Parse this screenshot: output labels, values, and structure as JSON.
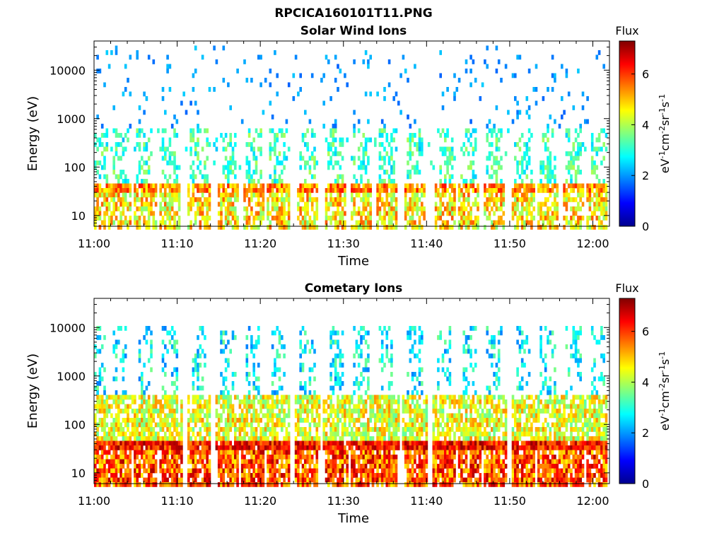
{
  "figure_title": "RPCICA160101T11.PNG",
  "chart_data": [
    {
      "type": "heatmap",
      "title": "Solar Wind Ions",
      "xlabel": "Time",
      "ylabel": "Energy (eV)",
      "x_ticks": [
        "11:00",
        "11:10",
        "11:20",
        "11:30",
        "11:40",
        "11:50",
        "12:00"
      ],
      "x_range": [
        "11:00",
        "12:02"
      ],
      "y_scale": "log",
      "y_ticks": [
        10,
        100,
        1000,
        10000
      ],
      "y_range": [
        6,
        40000
      ],
      "colorbar": {
        "label": "Flux",
        "units": "eV-1cm-2sr-1s-1",
        "range": [
          0,
          7.3
        ],
        "ticks": [
          0,
          2,
          4,
          6
        ],
        "colormap": "jet"
      },
      "burst_times_min": [
        0.5,
        3,
        6,
        9,
        12.5,
        16,
        19,
        22,
        25.5,
        29,
        32,
        35,
        38.5,
        42,
        45,
        48,
        51.5,
        54.5,
        57.5,
        60.5
      ],
      "band_peak_flux": 6.3,
      "band_energy_eV": [
        30,
        45
      ],
      "notes_scatter_energy_eV": [
        600,
        30000
      ]
    },
    {
      "type": "heatmap",
      "title": "Cometary Ions",
      "xlabel": "Time",
      "ylabel": "Energy (eV)",
      "x_ticks": [
        "11:00",
        "11:10",
        "11:20",
        "11:30",
        "11:40",
        "11:50",
        "12:00"
      ],
      "x_range": [
        "11:00",
        "12:02"
      ],
      "y_scale": "log",
      "y_ticks": [
        10,
        100,
        1000,
        10000
      ],
      "y_range": [
        6,
        40000
      ],
      "colorbar": {
        "label": "Flux",
        "units": "eV-1cm-2sr-1s-1",
        "range": [
          0,
          7.3
        ],
        "ticks": [
          0,
          2,
          4,
          6
        ],
        "colormap": "jet"
      },
      "burst_times_min": [
        0.5,
        3,
        6,
        9,
        12.5,
        16,
        19,
        22,
        25.5,
        29,
        32,
        35,
        38.5,
        42,
        45,
        48,
        51.5,
        54.5,
        57.5,
        60.5
      ],
      "band_peak_flux": 7.1,
      "band_energy_eV": [
        30,
        45
      ]
    }
  ]
}
